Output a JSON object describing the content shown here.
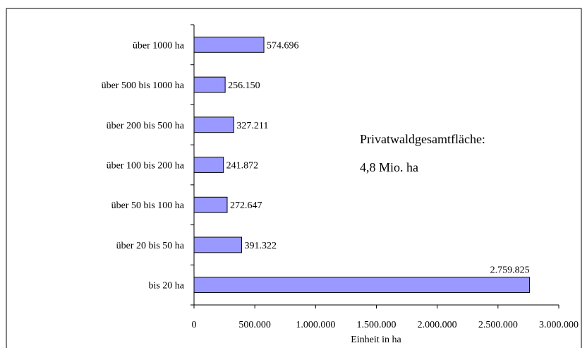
{
  "chart_data": {
    "type": "bar",
    "orientation": "horizontal",
    "categories": [
      "über 1000 ha",
      "über 500 bis 1000 ha",
      "über 200 bis 500 ha",
      "über 100 bis 200 ha",
      "über 50 bis 100 ha",
      "über 20 bis 50 ha",
      "bis 20 ha"
    ],
    "values": [
      574696,
      256150,
      327211,
      241872,
      272647,
      391322,
      2759825
    ],
    "value_labels": [
      "574.696",
      "256.150",
      "327.211",
      "241.872",
      "272.647",
      "391.322",
      "2.759.825"
    ],
    "xlabel": "Einheit in ha",
    "ylabel": "",
    "xlim": [
      0,
      3000000
    ],
    "x_ticks": [
      0,
      500000,
      1000000,
      1500000,
      2000000,
      2500000,
      3000000
    ],
    "x_tick_labels": [
      "0",
      "500.000",
      "1.000.000",
      "1.500.000",
      "2.000.000",
      "2.500.000",
      "3.000.000"
    ],
    "grid": false,
    "legend": "none",
    "annotation": {
      "line1": "Privatwaldgesamtfläche:",
      "line2": "4,8 Mio. ha"
    },
    "colors": {
      "bar_fill": "#9999ff",
      "bar_stroke": "#000000",
      "axis": "#000000",
      "frame": "#000000"
    }
  }
}
